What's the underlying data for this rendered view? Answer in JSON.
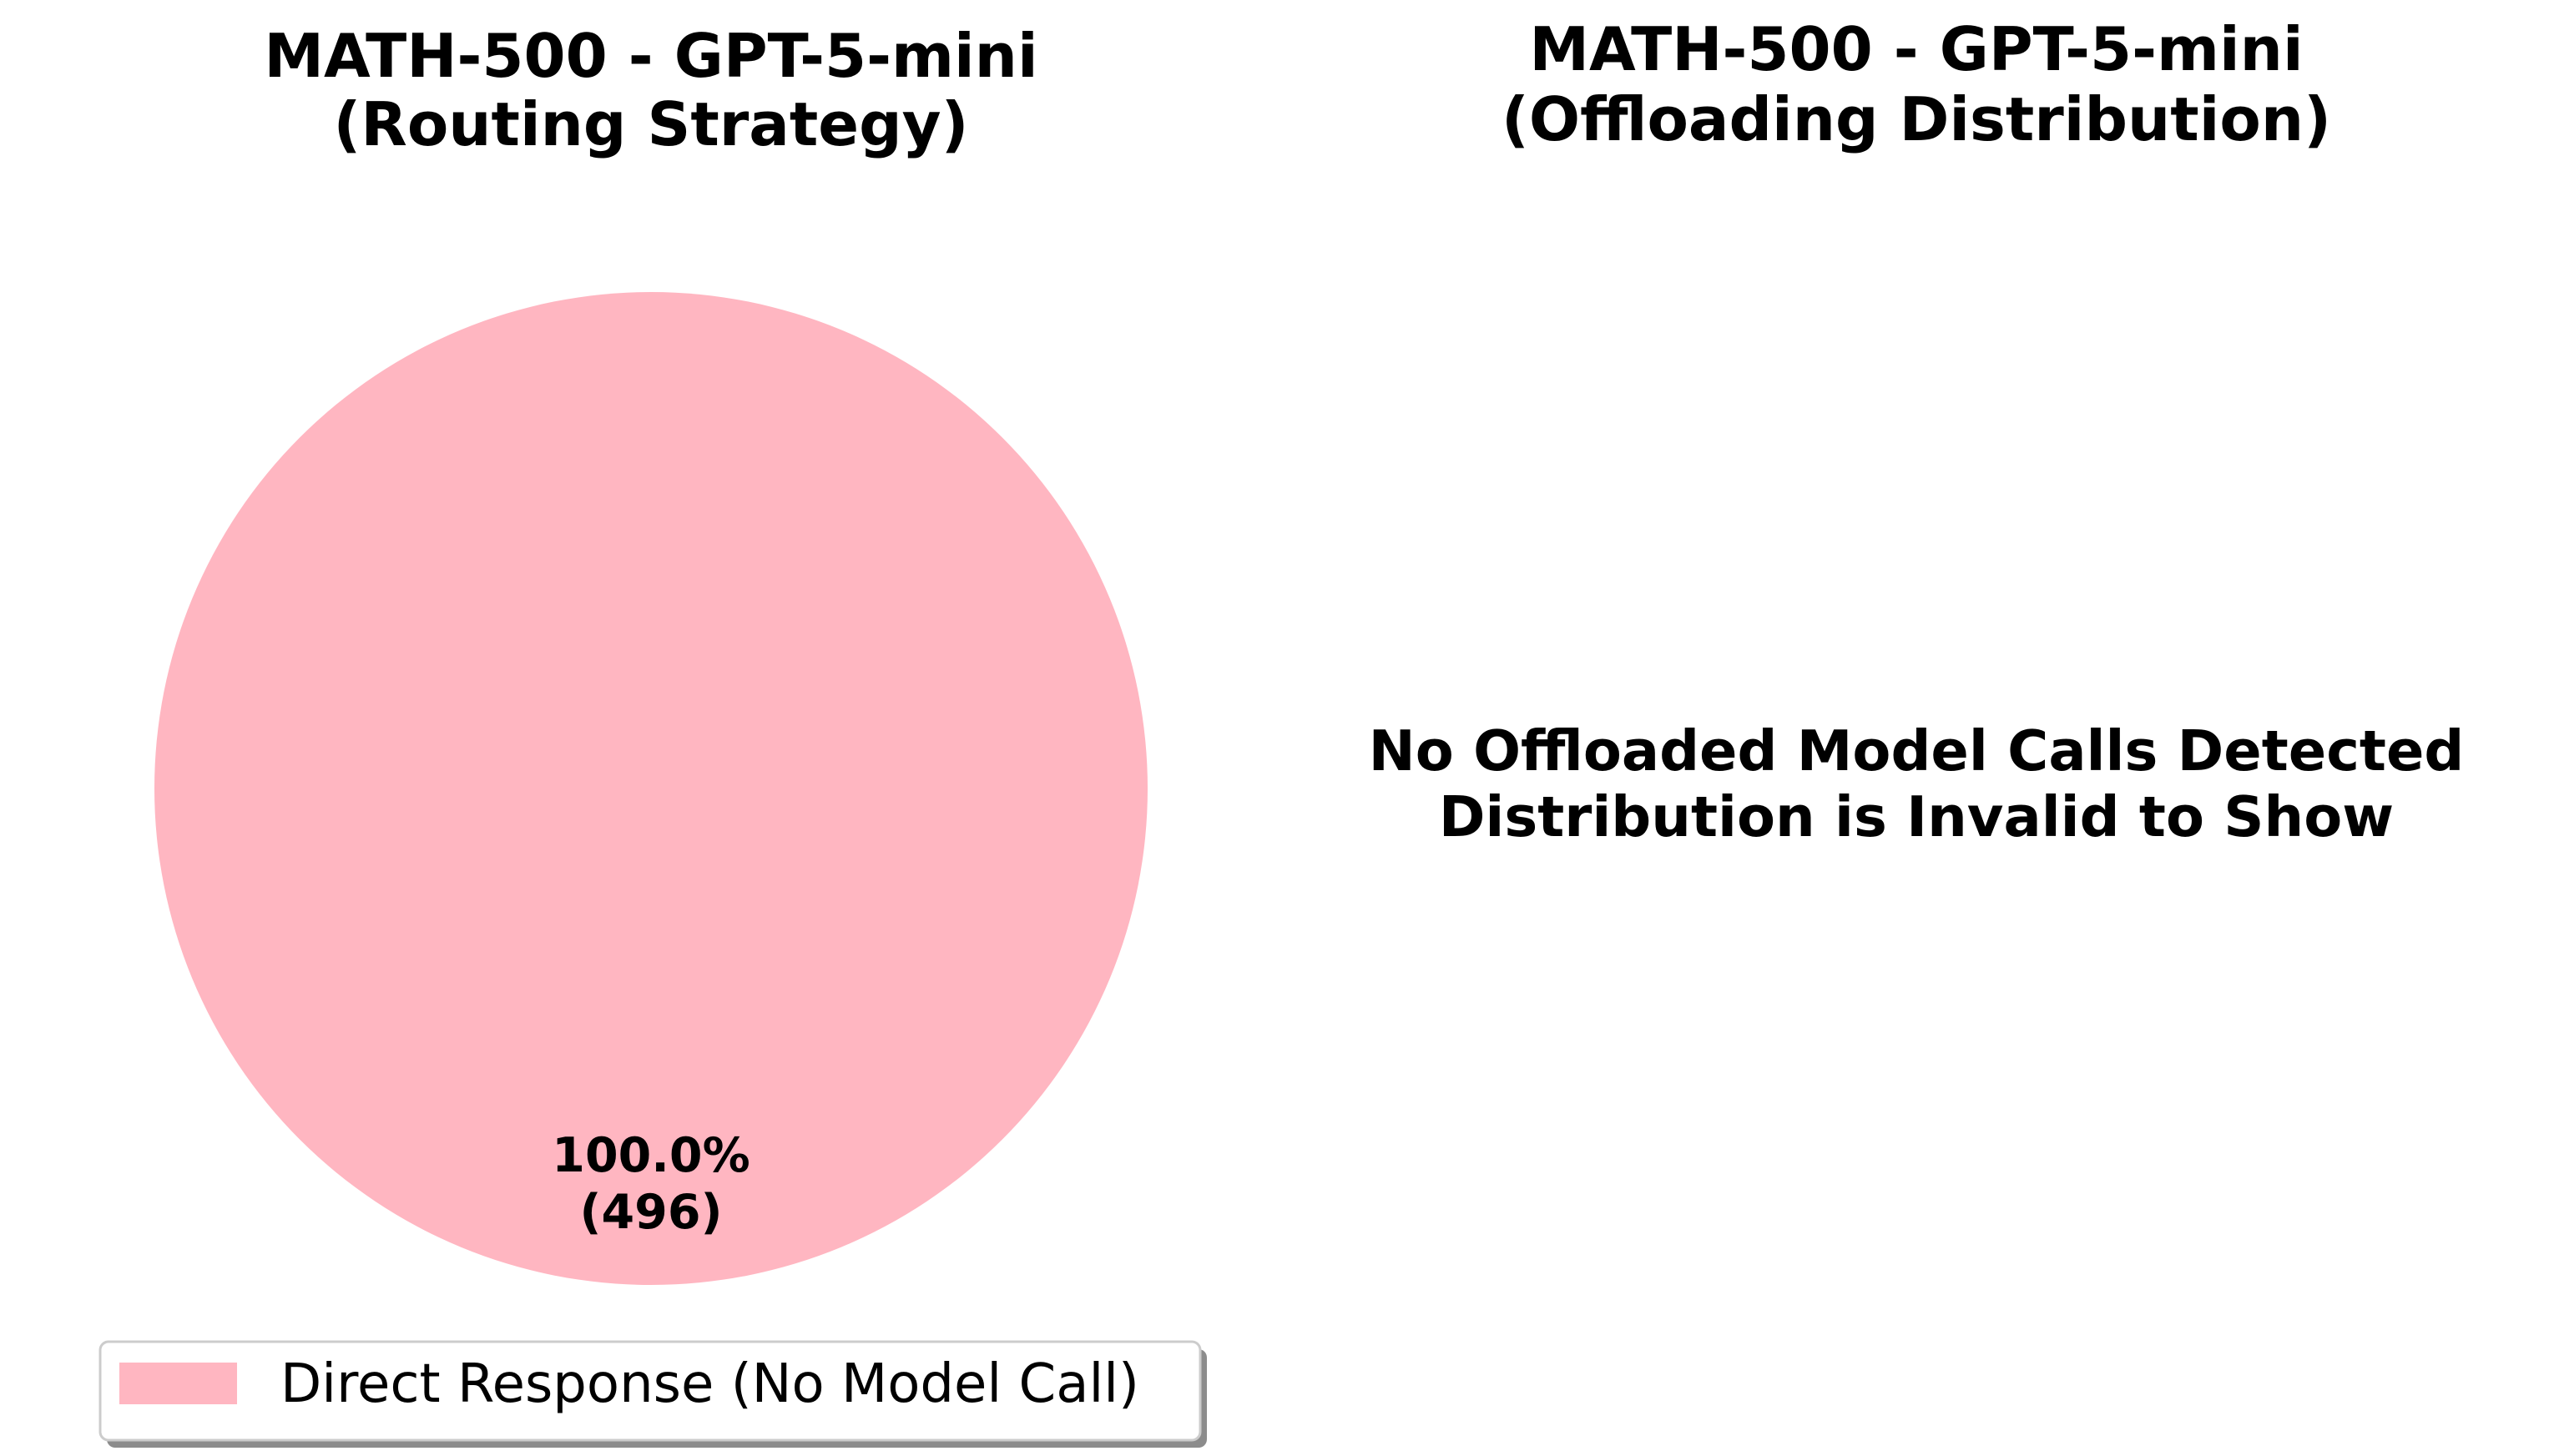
{
  "chart_data": [
    {
      "type": "pie",
      "title": "MATH-500 - GPT-5-mini",
      "subtitle": "(Routing Strategy)",
      "slices": [
        {
          "label": "Direct Response (No Model Call)",
          "value": 496,
          "percent_label": "100.0%",
          "count_label": "(496)",
          "color": "#FFB6C1"
        }
      ],
      "legend": {
        "placement": "bottom-center",
        "entries": [
          "Direct Response (No Model Call)"
        ]
      }
    },
    {
      "type": "pie",
      "title": "MATH-500 - GPT-5-mini",
      "subtitle": "(Offloading Distribution)",
      "slices": [],
      "message_line1": "No Offloaded Model Calls Detected",
      "message_line2": "Distribution is Invalid to Show"
    }
  ]
}
